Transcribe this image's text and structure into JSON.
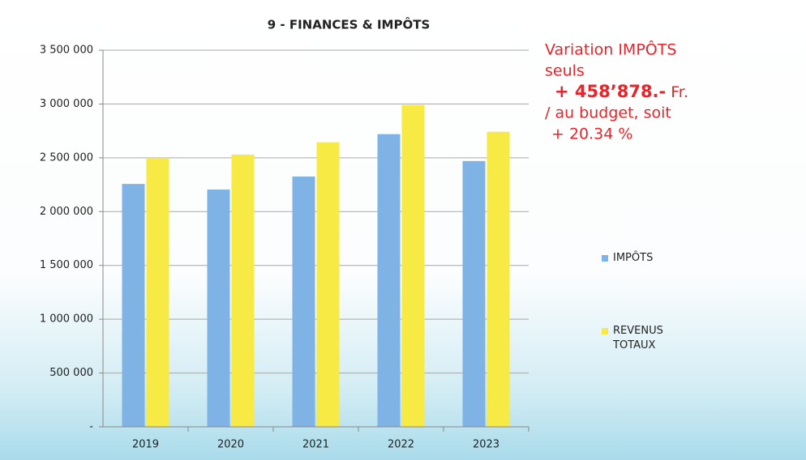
{
  "chart_data": {
    "type": "bar",
    "title": "9 - FINANCES & IMPÔTS",
    "categories": [
      "2019",
      "2020",
      "2021",
      "2022",
      "2023"
    ],
    "series": [
      {
        "name": "IMPÔTS",
        "color": "#7fb2e5",
        "values": [
          2257000,
          2205000,
          2326000,
          2720000,
          2470000
        ]
      },
      {
        "name": "REVENUS TOTAUX",
        "color": "#f7ea45",
        "values": [
          2500000,
          2530000,
          2644000,
          2990000,
          2742000
        ]
      }
    ],
    "ylim": [
      0,
      3500000
    ],
    "yticks": [
      {
        "value": 0,
        "label": "-"
      },
      {
        "value": 500000,
        "label": "500 000"
      },
      {
        "value": 1000000,
        "label": "1 000 000"
      },
      {
        "value": 1500000,
        "label": "1 500 000"
      },
      {
        "value": 2000000,
        "label": "2 000 000"
      },
      {
        "value": 2500000,
        "label": "2 500 000"
      },
      {
        "value": 3000000,
        "label": "3 000 000"
      },
      {
        "value": 3500000,
        "label": "3 500 000"
      }
    ],
    "grid": true,
    "legend": "right",
    "annotation": [
      "Variation IMPÔTS",
      "seuls",
      "+ 458’878.-",
      "Fr.",
      "/ au budget, soit",
      "+ 20.34 %"
    ]
  }
}
